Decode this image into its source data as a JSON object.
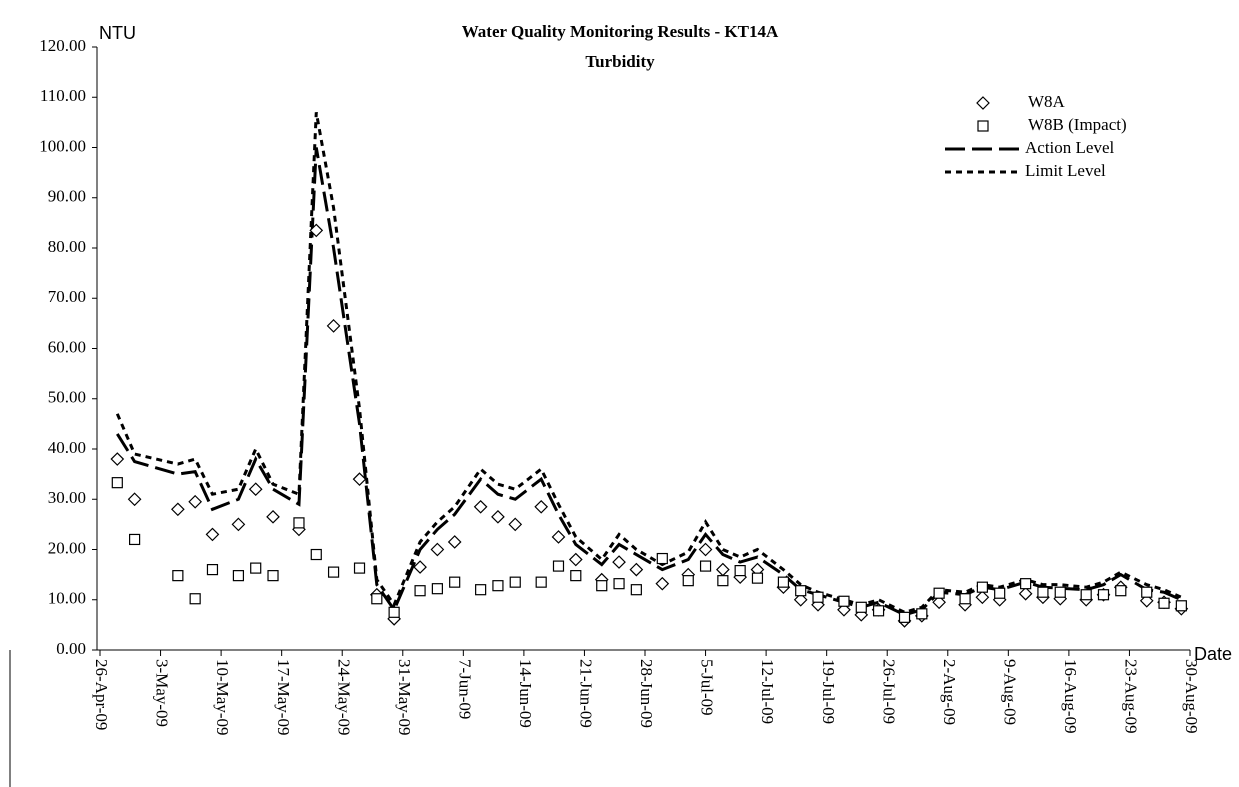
{
  "chart_data": {
    "type": "scatter-line",
    "title": "Water Quality Monitoring Results - KT14A",
    "subtitle": "Turbidity",
    "y_label": "NTU",
    "x_label": "Date",
    "x": [
      "2009-04-28",
      "2009-04-30",
      "2009-05-05",
      "2009-05-07",
      "2009-05-09",
      "2009-05-12",
      "2009-05-14",
      "2009-05-16",
      "2009-05-19",
      "2009-05-21",
      "2009-05-23",
      "2009-05-26",
      "2009-05-28",
      "2009-05-30",
      "2009-06-02",
      "2009-06-04",
      "2009-06-06",
      "2009-06-09",
      "2009-06-11",
      "2009-06-13",
      "2009-06-16",
      "2009-06-18",
      "2009-06-20",
      "2009-06-23",
      "2009-06-25",
      "2009-06-27",
      "2009-06-30",
      "2009-07-03",
      "2009-07-05",
      "2009-07-07",
      "2009-07-09",
      "2009-07-11",
      "2009-07-14",
      "2009-07-16",
      "2009-07-18",
      "2009-07-21",
      "2009-07-23",
      "2009-07-25",
      "2009-07-28",
      "2009-07-30",
      "2009-08-01",
      "2009-08-04",
      "2009-08-06",
      "2009-08-08",
      "2009-08-11",
      "2009-08-13",
      "2009-08-15",
      "2009-08-18",
      "2009-08-20",
      "2009-08-22",
      "2009-08-25",
      "2009-08-27",
      "2009-08-29"
    ],
    "series": [
      {
        "name": "W8A",
        "color": "#000000",
        "marker": "diamond",
        "values": [
          38,
          30,
          28,
          29.5,
          23,
          25,
          32,
          26.5,
          24,
          83.5,
          64.5,
          34,
          11,
          6.2,
          16.5,
          20,
          21.5,
          28.5,
          26.5,
          25,
          28.5,
          22.5,
          18,
          14,
          17.5,
          16,
          13.2,
          15,
          20,
          16,
          14.5,
          16,
          12.5,
          10,
          9,
          8,
          7,
          8,
          5.8,
          6.8,
          9.5,
          9,
          10.5,
          10,
          11.2,
          10.5,
          10.2,
          10,
          11,
          12.5,
          9.8,
          9.5,
          8.2
        ]
      },
      {
        "name": "W8B (Impact)",
        "color": "#000000",
        "marker": "square",
        "values": [
          33.3,
          22,
          14.8,
          10.2,
          16,
          14.8,
          16.3,
          14.8,
          25.3,
          19,
          15.5,
          16.3,
          10.2,
          7.5,
          11.8,
          12.2,
          13.5,
          12,
          12.8,
          13.5,
          13.5,
          16.7,
          14.8,
          12.8,
          13.2,
          12,
          18.2,
          13.8,
          16.7,
          13.8,
          15.8,
          14.3,
          13.5,
          11.8,
          10.5,
          9.7,
          8.5,
          7.8,
          6.5,
          7.2,
          11.3,
          10.2,
          12.5,
          11.3,
          13.2,
          11.5,
          11.5,
          11,
          11,
          11.8,
          11.5,
          9.3,
          8.8
        ]
      },
      {
        "name": "Action Level",
        "color": "#000000",
        "line": "long-dash",
        "values": [
          43,
          37.5,
          35,
          35.5,
          28,
          30,
          38,
          32,
          29,
          100,
          80,
          45,
          13,
          8,
          20,
          24,
          27,
          34,
          31,
          30,
          34,
          27,
          21,
          17,
          21,
          19,
          16,
          18,
          23,
          19,
          17.5,
          18.5,
          15,
          12,
          11,
          9.5,
          8.5,
          9.5,
          7,
          8,
          11.5,
          11,
          12.5,
          12,
          13.5,
          12.5,
          12.3,
          12,
          13,
          15,
          12,
          11.5,
          10
        ]
      },
      {
        "name": "Limit Level",
        "color": "#000000",
        "line": "short-dash",
        "values": [
          47,
          39,
          37,
          38,
          31,
          32,
          40,
          33,
          31,
          107,
          88,
          48,
          14,
          9,
          21.5,
          25.5,
          28.5,
          36,
          33,
          32,
          36,
          29,
          22.5,
          18,
          23,
          20,
          17,
          19.5,
          25.5,
          20,
          18.5,
          20,
          16,
          13,
          11.5,
          10,
          9,
          10,
          7.5,
          8.5,
          12,
          11.5,
          13,
          12.5,
          14,
          13,
          13,
          12.5,
          13.5,
          15.5,
          13,
          12,
          10.5
        ]
      }
    ],
    "xlim": [
      "2009-04-26",
      "2009-08-30"
    ],
    "xticks": [
      {
        "value": "2009-04-26",
        "label": "26-Apr-09"
      },
      {
        "value": "2009-05-03",
        "label": "3-May-09"
      },
      {
        "value": "2009-05-10",
        "label": "10-May-09"
      },
      {
        "value": "2009-05-17",
        "label": "17-May-09"
      },
      {
        "value": "2009-05-24",
        "label": "24-May-09"
      },
      {
        "value": "2009-05-31",
        "label": "31-May-09"
      },
      {
        "value": "2009-06-07",
        "label": "7-Jun-09"
      },
      {
        "value": "2009-06-14",
        "label": "14-Jun-09"
      },
      {
        "value": "2009-06-21",
        "label": "21-Jun-09"
      },
      {
        "value": "2009-06-28",
        "label": "28-Jun-09"
      },
      {
        "value": "2009-07-05",
        "label": "5-Jul-09"
      },
      {
        "value": "2009-07-12",
        "label": "12-Jul-09"
      },
      {
        "value": "2009-07-19",
        "label": "19-Jul-09"
      },
      {
        "value": "2009-07-26",
        "label": "26-Jul-09"
      },
      {
        "value": "2009-08-02",
        "label": "2-Aug-09"
      },
      {
        "value": "2009-08-09",
        "label": "9-Aug-09"
      },
      {
        "value": "2009-08-16",
        "label": "16-Aug-09"
      },
      {
        "value": "2009-08-23",
        "label": "23-Aug-09"
      },
      {
        "value": "2009-08-30",
        "label": "30-Aug-09"
      }
    ],
    "ylim": [
      0,
      120
    ],
    "yticks": [
      {
        "value": 0,
        "label": "0.00"
      },
      {
        "value": 10,
        "label": "10.00"
      },
      {
        "value": 20,
        "label": "20.00"
      },
      {
        "value": 30,
        "label": "30.00"
      },
      {
        "value": 40,
        "label": "40.00"
      },
      {
        "value": 50,
        "label": "50.00"
      },
      {
        "value": 60,
        "label": "60.00"
      },
      {
        "value": 70,
        "label": "70.00"
      },
      {
        "value": 80,
        "label": "80.00"
      },
      {
        "value": 90,
        "label": "90.00"
      },
      {
        "value": 100,
        "label": "100.00"
      },
      {
        "value": 110,
        "label": "110.00"
      },
      {
        "value": 120,
        "label": "120.00"
      }
    ],
    "grid": false,
    "legend": "top-right"
  }
}
